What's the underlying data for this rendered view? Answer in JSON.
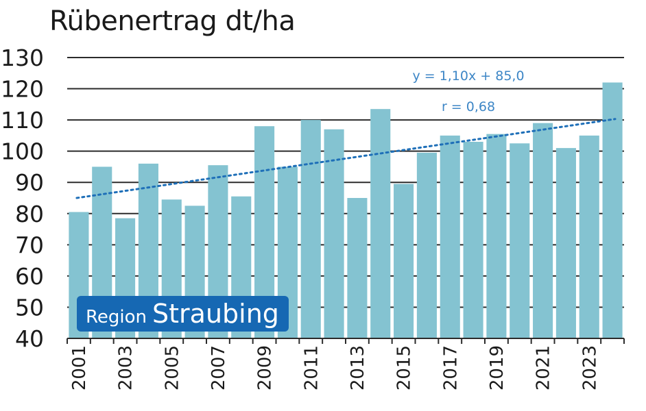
{
  "chart_data": {
    "type": "bar",
    "title": "Rübenertrag dt/ha",
    "categories": [
      "2001",
      "2002",
      "2003",
      "2004",
      "2005",
      "2006",
      "2007",
      "2008",
      "2009",
      "2010",
      "2011",
      "2012",
      "2013",
      "2014",
      "2015",
      "2016",
      "2017",
      "2018",
      "2019",
      "2020",
      "2021",
      "2022",
      "2023",
      "2024"
    ],
    "x_tick_labels": [
      "2001",
      "2003",
      "2005",
      "2007",
      "2009",
      "2011",
      "2013",
      "2015",
      "2017",
      "2019",
      "2021",
      "2023"
    ],
    "values": [
      80.5,
      95,
      78.5,
      96,
      84.5,
      82.5,
      95.5,
      85.5,
      108,
      95,
      110,
      107,
      85,
      113.5,
      89.5,
      99.5,
      105,
      103,
      105.5,
      102.5,
      109,
      101,
      105,
      122
    ],
    "ylim": [
      40,
      130
    ],
    "y_ticks": [
      40,
      50,
      60,
      70,
      80,
      90,
      100,
      110,
      120,
      130
    ],
    "grid": true,
    "bar_color": "#84c3d1",
    "trend_color": "#1e6fb8",
    "trendline": {
      "equation": "y = 1,10x + 85,0",
      "r_label": "r = 0,68",
      "slope": 1.1,
      "intercept": 85.0
    },
    "badge": {
      "small": "Region",
      "big": "Straubing",
      "color": "#1668b3"
    }
  }
}
